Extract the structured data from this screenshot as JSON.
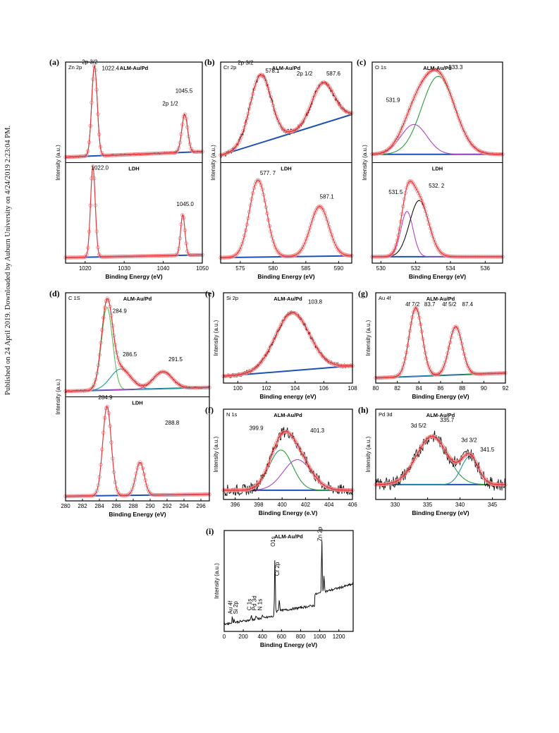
{
  "side_note": "Published on 24 April 2019. Downloaded by Auburn University on 4/24/2019 2:23:04 PM.",
  "chart_data": [
    {
      "panel": "(a)",
      "type": "line",
      "element": "Zn 2p",
      "xlabel": "Binding Energy (eV)",
      "ylabel": "Intensity (a.u.)",
      "xlim": [
        1015,
        1050
      ],
      "xticks": [
        1020,
        1030,
        1040,
        1050
      ],
      "reverse_x": false,
      "subplots": [
        {
          "title": "ALM-Au/Pd",
          "baseline": [
            0.03,
            0.09
          ],
          "noise": 0.01,
          "peaks": [
            {
              "center": 1022.4,
              "height": 1.0,
              "width": 0.7,
              "show_fit": false
            },
            {
              "center": 1045.5,
              "height": 0.42,
              "width": 0.75,
              "show_fit": false
            }
          ],
          "annotations": [
            {
              "text": "2p 3/2",
              "x": 1021.2,
              "y": 1.06
            },
            {
              "text": "1022.4",
              "x": 1026.5,
              "y": 0.99
            },
            {
              "text": "2p 1/2",
              "x": 1041.8,
              "y": 0.6
            },
            {
              "text": "1045.5",
              "x": 1045.3,
              "y": 0.74
            }
          ]
        },
        {
          "title": "LDH",
          "baseline": [
            0.03,
            0.06
          ],
          "noise": 0,
          "peaks": [
            {
              "center": 1022.0,
              "height": 1.0,
              "width": 0.6,
              "show_fit": false
            },
            {
              "center": 1045.0,
              "height": 0.45,
              "width": 0.55,
              "show_fit": false
            }
          ],
          "annotations": [
            {
              "text": "1022.0",
              "x": 1023.8,
              "y": 1.0
            },
            {
              "text": "1045.0",
              "x": 1045.6,
              "y": 0.6
            }
          ]
        }
      ]
    },
    {
      "panel": "(b)",
      "type": "line",
      "element": "Cr 2p",
      "xlabel": "Binding Energy (eV)",
      "ylabel": "Intensity (a.u.)",
      "xlim": [
        572,
        592
      ],
      "xticks": [
        575,
        580,
        585,
        590
      ],
      "reverse_x": false,
      "subplots": [
        {
          "title": "ALM-Au/Pd",
          "baseline": [
            0.05,
            0.5
          ],
          "noise": 0.03,
          "peaks": [
            {
              "center": 578.1,
              "height": 0.75,
              "width": 1.6,
              "show_fit": false
            },
            {
              "center": 587.6,
              "height": 0.45,
              "width": 1.7,
              "show_fit": false
            }
          ],
          "annotations": [
            {
              "text": "2p 3/2",
              "x": 575.8,
              "y": 1.05
            },
            {
              "text": "578.1",
              "x": 579.9,
              "y": 0.96
            },
            {
              "text": "2p 1/2",
              "x": 584.8,
              "y": 0.93
            },
            {
              "text": "587.6",
              "x": 589.2,
              "y": 0.93
            }
          ]
        },
        {
          "title": "LDH",
          "baseline": [
            0.03,
            0.05
          ],
          "noise": 0,
          "peaks": [
            {
              "center": 577.7,
              "height": 0.85,
              "width": 1.3,
              "show_fit": false
            },
            {
              "center": 587.1,
              "height": 0.55,
              "width": 1.4,
              "show_fit": false
            }
          ],
          "annotations": [
            {
              "text": "577. 7",
              "x": 579.2,
              "y": 0.94
            },
            {
              "text": "587.1",
              "x": 588.2,
              "y": 0.68
            }
          ]
        }
      ]
    },
    {
      "panel": "(c)",
      "type": "line",
      "element": "O 1s",
      "xlabel": "Binding Energy (eV)",
      "ylabel": "Intensity (a.u.)",
      "xlim": [
        529.5,
        537
      ],
      "xticks": [
        530,
        532,
        534,
        536
      ],
      "reverse_x": false,
      "subplots": [
        {
          "title": "ALM-Au/Pd",
          "baseline": [
            0.06,
            0.06
          ],
          "noise": 0.01,
          "peaks": [
            {
              "center": 531.9,
              "height": 0.33,
              "width": 0.75,
              "color": "#b044c4",
              "show_fit": true
            },
            {
              "center": 533.3,
              "height": 0.86,
              "width": 0.95,
              "color": "#2a9d3a",
              "show_fit": true
            }
          ],
          "annotations": [
            {
              "text": "531.9",
              "x": 530.7,
              "y": 0.64
            },
            {
              "text": "533.3",
              "x": 534.3,
              "y": 1.0
            }
          ]
        },
        {
          "title": "LDH",
          "baseline": [
            0.04,
            0.04
          ],
          "noise": 0,
          "peaks": [
            {
              "center": 531.5,
              "height": 0.5,
              "width": 0.35,
              "color": "#b044c4",
              "show_fit": true
            },
            {
              "center": 532.2,
              "height": 0.62,
              "width": 0.55,
              "color": "#111111",
              "show_fit": true
            }
          ],
          "annotations": [
            {
              "text": "531.5",
              "x": 530.85,
              "y": 0.73
            },
            {
              "text": "532. 2",
              "x": 533.2,
              "y": 0.8
            }
          ]
        }
      ]
    },
    {
      "panel": "(d)",
      "type": "line",
      "element": "C 1S",
      "xlabel": "Binding Energy (eV)",
      "ylabel": "Intensity (a.u.)",
      "xlim": [
        280,
        297
      ],
      "xticks": [
        280,
        282,
        284,
        286,
        288,
        290,
        292,
        294,
        296
      ],
      "reverse_x": false,
      "subplots": [
        {
          "title": "ALM-Au/Pd",
          "baseline": [
            0.03,
            0.07
          ],
          "noise": 0.01,
          "peaks": [
            {
              "center": 284.9,
              "height": 0.88,
              "width": 0.65,
              "color": "#55c255",
              "show_fit": true
            },
            {
              "center": 286.5,
              "height": 0.22,
              "width": 1.2,
              "color": "#1a9a9a",
              "show_fit": true
            },
            {
              "center": 291.5,
              "height": 0.18,
              "width": 1.1,
              "color": "#b044c4",
              "show_fit": true
            }
          ],
          "annotations": [
            {
              "text": "284.9",
              "x": 286.4,
              "y": 0.86
            },
            {
              "text": "286.5",
              "x": 287.6,
              "y": 0.4
            },
            {
              "text": "291.5",
              "x": 293.0,
              "y": 0.35
            }
          ]
        },
        {
          "title": "LDH",
          "baseline": [
            0.02,
            0.04
          ],
          "noise": 0,
          "peaks": [
            {
              "center": 284.9,
              "height": 0.95,
              "width": 0.5,
              "show_fit": false
            },
            {
              "center": 288.8,
              "height": 0.35,
              "width": 0.5,
              "show_fit": false
            }
          ],
          "annotations": [
            {
              "text": "284.9",
              "x": 284.7,
              "y": 1.05
            },
            {
              "text": "288.8",
              "x": 292.6,
              "y": 0.78
            }
          ]
        }
      ]
    },
    {
      "panel": "(e)",
      "type": "line",
      "element": "Si 2p",
      "xlabel": "Binding energy (eV)",
      "ylabel": "Intensity (a.u.)",
      "xlim": [
        99,
        108
      ],
      "xticks": [
        100,
        102,
        104,
        106,
        108
      ],
      "reverse_x": false,
      "subplots": [
        {
          "title": "ALM-Au/Pd",
          "baseline": [
            0.05,
            0.18
          ],
          "noise": 0.03,
          "peaks": [
            {
              "center": 103.8,
              "height": 0.72,
              "width": 1.2,
              "show_fit": false
            }
          ],
          "annotations": [
            {
              "text": "103.8",
              "x": 105.4,
              "y": 0.95
            }
          ]
        }
      ]
    },
    {
      "panel": "(f)",
      "type": "line",
      "element": "N 1s",
      "xlabel": "Binding Energy (e.V)",
      "ylabel": "Intensity (a.u.)",
      "xlim": [
        395,
        406
      ],
      "xticks": [
        396,
        398,
        400,
        402,
        404,
        406
      ],
      "reverse_x": false,
      "subplots": [
        {
          "title": "ALM-Au/Pd",
          "baseline": [
            0.08,
            0.08
          ],
          "noise": 0.07,
          "peaks": [
            {
              "center": 399.9,
              "height": 0.5,
              "width": 1.0,
              "color": "#2a9d3a",
              "show_fit": true
            },
            {
              "center": 401.3,
              "height": 0.38,
              "width": 1.2,
              "color": "#b044c4",
              "show_fit": true
            }
          ],
          "annotations": [
            {
              "text": "399.9",
              "x": 397.8,
              "y": 0.83
            },
            {
              "text": "401.3",
              "x": 403.0,
              "y": 0.8
            }
          ]
        }
      ]
    },
    {
      "panel": "(g)",
      "type": "line",
      "element": "Au 4f",
      "xlabel": "Binding Energy (eV)",
      "ylabel": "Intensity (a.u.)",
      "xlim": [
        80,
        92
      ],
      "xticks": [
        80,
        82,
        84,
        86,
        88,
        90,
        92
      ],
      "reverse_x": false,
      "subplots": [
        {
          "title": "ALM-Au/Pd",
          "baseline": [
            0.03,
            0.09
          ],
          "noise": 0.01,
          "peaks": [
            {
              "center": 83.7,
              "height": 0.85,
              "width": 0.6,
              "color": "#2a9d3a",
              "show_fit": true
            },
            {
              "center": 87.4,
              "height": 0.6,
              "width": 0.6,
              "color": "#1a9a9a",
              "show_fit": true
            }
          ],
          "annotations": [
            {
              "text": "4f 7/2",
              "x": 83.4,
              "y": 0.92
            },
            {
              "text": "83.7",
              "x": 85.0,
              "y": 0.92
            },
            {
              "text": "4f 5/2",
              "x": 86.8,
              "y": 0.92
            },
            {
              "text": "87.4",
              "x": 88.5,
              "y": 0.92
            }
          ]
        }
      ]
    },
    {
      "panel": "(h)",
      "type": "line",
      "element": "Pd 3d",
      "xlabel": "Binding Energy (eV)",
      "ylabel": "Intensity (a.u.)",
      "xlim": [
        327,
        347
      ],
      "xticks": [
        330,
        335,
        340,
        345
      ],
      "reverse_x": false,
      "subplots": [
        {
          "title": "ALM-Au/Pd",
          "baseline": [
            0.15,
            0.15
          ],
          "noise": 0.08,
          "peaks": [
            {
              "center": 335.7,
              "height": 0.6,
              "width": 2.4,
              "color": "#2a9d3a",
              "show_fit": true
            },
            {
              "center": 341.5,
              "height": 0.35,
              "width": 1.3,
              "color": "#1a9a9a",
              "show_fit": true
            }
          ],
          "annotations": [
            {
              "text": "3d 5/2",
              "x": 333.6,
              "y": 0.86
            },
            {
              "text": "335.7",
              "x": 338.0,
              "y": 0.93
            },
            {
              "text": "3d 3/2",
              "x": 341.4,
              "y": 0.68
            },
            {
              "text": "341.5",
              "x": 344.2,
              "y": 0.56
            }
          ]
        }
      ]
    },
    {
      "panel": "(i)",
      "type": "line",
      "element": "",
      "xlabel": "Binding Energy (eV)",
      "ylabel": "Intensity (a.u.)",
      "xlim": [
        0,
        1350
      ],
      "xticks": [
        0,
        200,
        400,
        600,
        800,
        1000,
        1200
      ],
      "reverse_x": false,
      "subplots": [
        {
          "title": "ALM-Au/Pd",
          "survey": true,
          "annotations": [
            {
              "text": "Au 4f",
              "x": 85,
              "y": 0.16
            },
            {
              "text": "Si 2p",
              "x": 140,
              "y": 0.16
            },
            {
              "text": "C 1s",
              "x": 285,
              "y": 0.2
            },
            {
              "text": "Pd 3d",
              "x": 335,
              "y": 0.2
            },
            {
              "text": "N 1s",
              "x": 395,
              "y": 0.2
            },
            {
              "text": "O1s",
              "x": 531,
              "y": 0.9
            },
            {
              "text": "Cr 2p",
              "x": 577,
              "y": 0.58
            },
            {
              "text": "Zn 2p",
              "x": 1022,
              "y": 0.96
            }
          ]
        }
      ]
    }
  ],
  "colors": {
    "fit_total": "#e8333a",
    "data": "#111111",
    "background": "#1f4fb8",
    "circle": "#f08a8a"
  }
}
